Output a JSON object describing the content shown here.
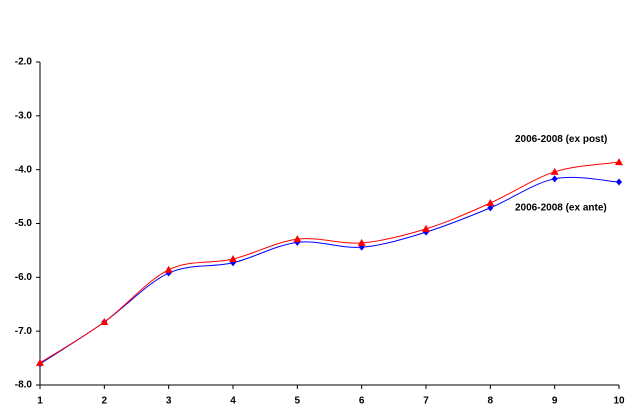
{
  "chart_data": {
    "type": "line",
    "x": [
      1,
      2,
      3,
      4,
      5,
      6,
      7,
      8,
      9,
      10
    ],
    "series": [
      {
        "name": "2006-2008 (ex ante)",
        "color": "#0000ff",
        "marker": "diamond",
        "values": [
          -7.61,
          -6.83,
          -5.92,
          -5.73,
          -5.35,
          -5.44,
          -5.16,
          -4.71,
          -4.17,
          -4.23
        ]
      },
      {
        "name": "2006-2008 (ex post)",
        "color": "#ff0000",
        "marker": "triangle",
        "values": [
          -7.59,
          -6.83,
          -5.86,
          -5.66,
          -5.29,
          -5.36,
          -5.1,
          -4.62,
          -4.04,
          -3.86
        ]
      }
    ],
    "xlim": [
      1,
      10
    ],
    "xticks": [
      1,
      2,
      3,
      4,
      5,
      6,
      7,
      8,
      9,
      10
    ],
    "ylim": [
      -8,
      -2
    ],
    "yticks": [
      {
        "value": -2,
        "label": "-2.0"
      },
      {
        "value": -3,
        "label": "-3.0"
      },
      {
        "value": -4,
        "label": "-4.0"
      },
      {
        "value": -5,
        "label": "-5.0"
      },
      {
        "value": -6,
        "label": "-6.0"
      },
      {
        "value": -7,
        "label": "-7.0"
      },
      {
        "value": -8,
        "label": "-8.0"
      }
    ],
    "smooth": true,
    "grid": false
  }
}
